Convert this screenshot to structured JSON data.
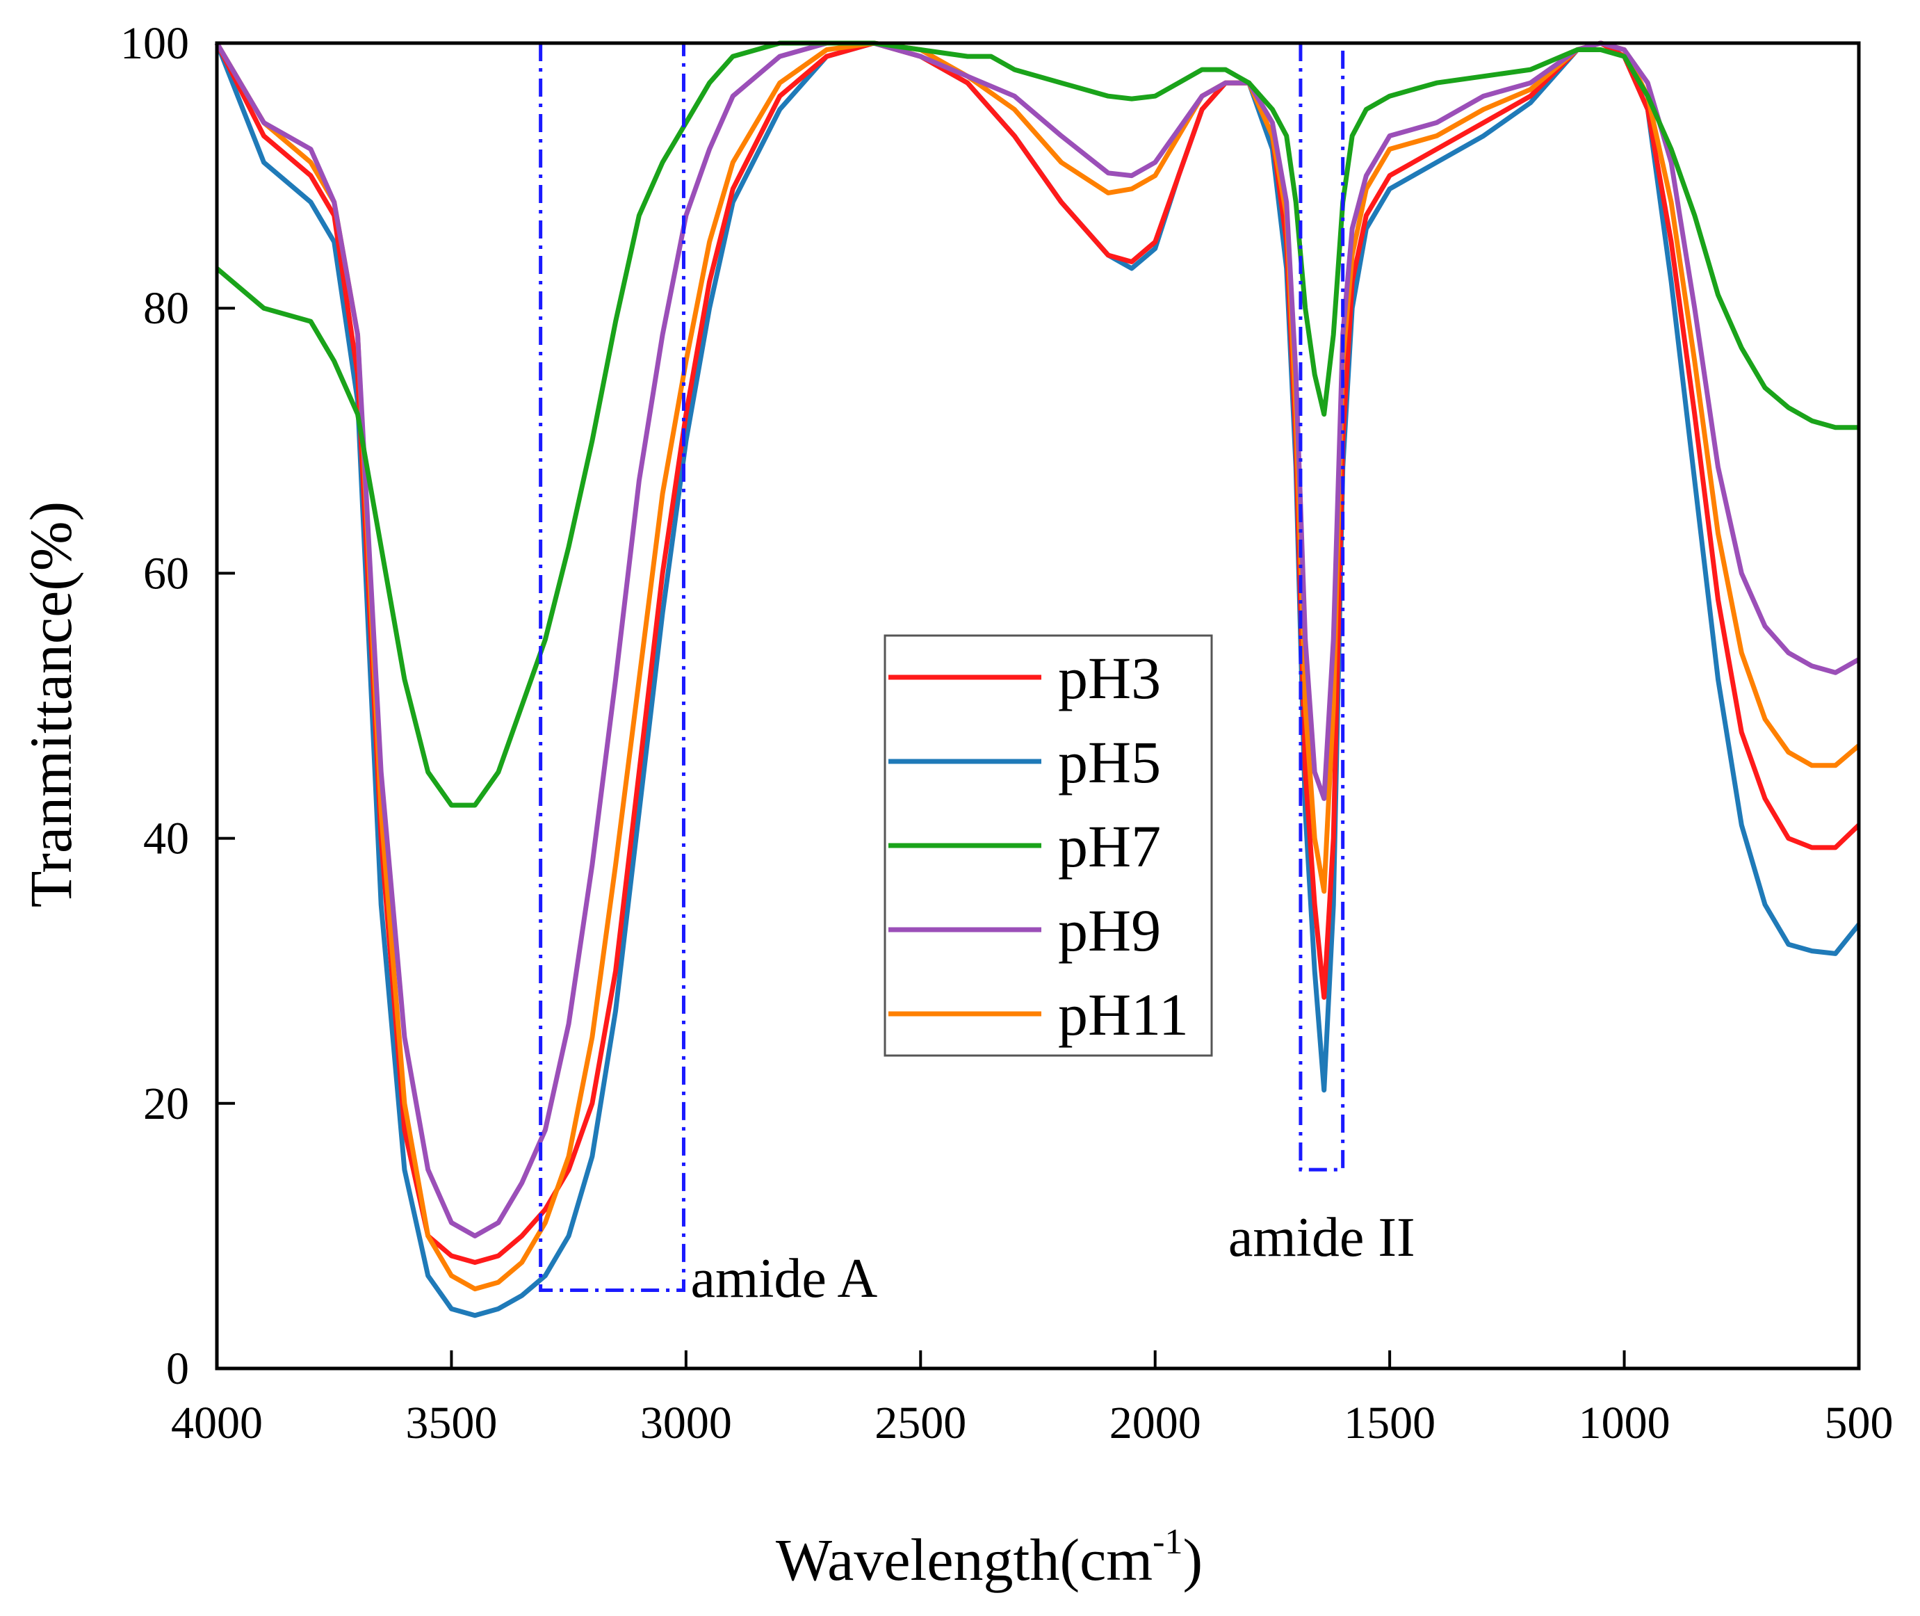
{
  "chart_data": {
    "type": "line",
    "title": "",
    "xlabel": "Wavelength(cm",
    "xlabel_superscript": "-1",
    "xlabel_close": ")",
    "ylabel": "Tranmittance(%)",
    "xlim": [
      4000,
      500
    ],
    "ylim": [
      0,
      100
    ],
    "xticks": [
      4000,
      3500,
      3000,
      2500,
      2000,
      1500,
      1000,
      500
    ],
    "yticks": [
      0,
      20,
      40,
      60,
      80,
      100
    ],
    "grid": false,
    "legend_position": "center",
    "annotations": [
      {
        "label": "amide A",
        "x_range": [
          3310,
          3005
        ],
        "y_range": [
          5.9,
          100
        ],
        "color": "#1a1aff"
      },
      {
        "label": "amide II",
        "x_range": [
          1690,
          1600
        ],
        "y_range": [
          15,
          100
        ],
        "color": "#1a1aff"
      }
    ],
    "series": [
      {
        "name": "pH3",
        "color": "#ff1a1a",
        "x": [
          4000,
          3900,
          3800,
          3750,
          3700,
          3650,
          3600,
          3550,
          3500,
          3450,
          3400,
          3350,
          3300,
          3250,
          3200,
          3150,
          3100,
          3050,
          3000,
          2950,
          2900,
          2800,
          2700,
          2600,
          2500,
          2400,
          2350,
          2300,
          2200,
          2100,
          2050,
          2000,
          1950,
          1900,
          1850,
          1800,
          1750,
          1720,
          1700,
          1680,
          1660,
          1640,
          1620,
          1600,
          1580,
          1550,
          1500,
          1400,
          1300,
          1200,
          1100,
          1050,
          1000,
          950,
          900,
          850,
          800,
          750,
          700,
          650,
          600,
          550,
          500
        ],
        "y": [
          100,
          93,
          90,
          87,
          75,
          40,
          18,
          10,
          8.5,
          8,
          8.5,
          10,
          12,
          15,
          20,
          30,
          45,
          60,
          72,
          82,
          89,
          96,
          99,
          100,
          99,
          97,
          95,
          93,
          88,
          84,
          83.5,
          85,
          90,
          95,
          97,
          97,
          93,
          85,
          70,
          45,
          35,
          28,
          40,
          70,
          82,
          87,
          90,
          92,
          94,
          96,
          99.5,
          100,
          99,
          95,
          85,
          72,
          58,
          48,
          43,
          40,
          39.3,
          39.3,
          41
        ]
      },
      {
        "name": "pH5",
        "color": "#1f7ab8",
        "x": [
          4000,
          3900,
          3800,
          3750,
          3700,
          3650,
          3600,
          3550,
          3500,
          3450,
          3400,
          3350,
          3300,
          3250,
          3200,
          3150,
          3100,
          3050,
          3000,
          2950,
          2900,
          2800,
          2700,
          2600,
          2500,
          2400,
          2350,
          2300,
          2200,
          2100,
          2050,
          2000,
          1950,
          1900,
          1850,
          1800,
          1750,
          1720,
          1700,
          1680,
          1660,
          1640,
          1620,
          1600,
          1580,
          1550,
          1500,
          1400,
          1300,
          1200,
          1100,
          1050,
          1000,
          950,
          900,
          850,
          800,
          750,
          700,
          650,
          600,
          550,
          500
        ],
        "y": [
          100,
          91,
          88,
          85,
          73,
          35,
          15,
          7,
          4.5,
          4,
          4.5,
          5.5,
          7,
          10,
          16,
          27,
          42,
          57,
          70,
          80,
          88,
          95,
          99,
          100,
          99,
          97,
          95,
          93,
          88,
          84,
          83,
          84.5,
          90,
          95,
          97,
          97,
          92,
          83,
          68,
          42,
          30,
          21,
          35,
          68,
          80,
          86,
          89,
          91,
          93,
          95.5,
          99.5,
          100,
          99,
          95,
          82,
          67,
          52,
          41,
          35,
          32,
          31.5,
          31.3,
          33.5
        ]
      },
      {
        "name": "pH7",
        "color": "#1aa31a",
        "x": [
          4000,
          3950,
          3900,
          3800,
          3750,
          3700,
          3650,
          3600,
          3550,
          3500,
          3450,
          3400,
          3350,
          3300,
          3250,
          3200,
          3150,
          3100,
          3050,
          3000,
          2950,
          2900,
          2800,
          2600,
          2500,
          2400,
          2350,
          2300,
          2200,
          2100,
          2050,
          2000,
          1950,
          1900,
          1850,
          1800,
          1750,
          1720,
          1700,
          1680,
          1660,
          1640,
          1620,
          1600,
          1580,
          1550,
          1500,
          1400,
          1300,
          1200,
          1100,
          1050,
          1000,
          950,
          900,
          850,
          800,
          750,
          700,
          650,
          600,
          550,
          500
        ],
        "y": [
          83,
          81.5,
          80,
          79,
          76,
          72,
          62,
          52,
          45,
          42.5,
          42.5,
          45,
          50,
          55,
          62,
          70,
          79,
          87,
          91,
          94,
          97,
          99,
          100,
          100,
          99.5,
          99,
          99,
          98,
          97,
          96,
          95.8,
          96,
          97,
          98,
          98,
          97,
          95,
          93,
          88,
          80,
          75,
          72,
          78,
          88,
          93,
          95,
          96,
          97,
          97.5,
          98,
          99.5,
          99.5,
          99,
          96,
          92,
          87,
          81,
          77,
          74,
          72.5,
          71.5,
          71,
          71
        ]
      },
      {
        "name": "pH9",
        "color": "#9b4fb8",
        "x": [
          4000,
          3900,
          3800,
          3750,
          3700,
          3650,
          3600,
          3550,
          3500,
          3450,
          3400,
          3350,
          3300,
          3250,
          3200,
          3150,
          3100,
          3050,
          3000,
          2950,
          2900,
          2800,
          2700,
          2600,
          2500,
          2400,
          2300,
          2200,
          2100,
          2050,
          2000,
          1950,
          1900,
          1850,
          1800,
          1750,
          1720,
          1700,
          1680,
          1660,
          1640,
          1620,
          1600,
          1580,
          1550,
          1500,
          1400,
          1300,
          1200,
          1100,
          1050,
          1000,
          950,
          900,
          850,
          800,
          750,
          700,
          650,
          600,
          550,
          500
        ],
        "y": [
          100,
          94,
          92,
          88,
          78,
          45,
          25,
          15,
          11,
          10,
          11,
          14,
          18,
          26,
          38,
          52,
          67,
          78,
          87,
          92,
          96,
          99,
          100,
          100,
          99,
          97.5,
          96,
          93,
          90.2,
          90,
          91,
          93.5,
          96,
          97,
          97,
          94,
          88,
          75,
          55,
          45,
          43,
          55,
          78,
          86,
          90,
          93,
          94,
          96,
          97,
          99.5,
          100,
          99.5,
          97,
          91,
          80,
          68,
          60,
          56,
          54,
          53,
          52.5,
          53.5
        ]
      },
      {
        "name": "pH11",
        "color": "#ff8000",
        "x": [
          4000,
          3900,
          3800,
          3750,
          3700,
          3650,
          3600,
          3550,
          3500,
          3450,
          3400,
          3350,
          3300,
          3250,
          3200,
          3150,
          3100,
          3050,
          3000,
          2950,
          2900,
          2800,
          2700,
          2600,
          2500,
          2400,
          2300,
          2200,
          2100,
          2050,
          2000,
          1950,
          1900,
          1850,
          1800,
          1750,
          1720,
          1700,
          1680,
          1660,
          1640,
          1620,
          1600,
          1580,
          1550,
          1500,
          1400,
          1300,
          1200,
          1100,
          1050,
          1000,
          950,
          900,
          850,
          800,
          750,
          700,
          650,
          600,
          550,
          500
        ],
        "y": [
          100,
          94,
          91,
          88,
          78,
          42,
          20,
          10,
          7,
          6,
          6.5,
          8,
          11,
          16,
          25,
          38,
          52,
          66,
          76,
          85,
          91,
          97,
          99.5,
          100,
          99.5,
          97.5,
          95,
          91,
          88.7,
          89,
          90,
          93,
          96,
          97,
          97,
          93,
          87,
          72,
          50,
          40,
          36,
          50,
          76,
          84,
          89,
          92,
          93,
          95,
          96.5,
          99.5,
          100,
          99.5,
          96,
          88,
          76,
          63,
          54,
          49,
          46.5,
          45.5,
          45.5,
          47
        ]
      }
    ]
  }
}
